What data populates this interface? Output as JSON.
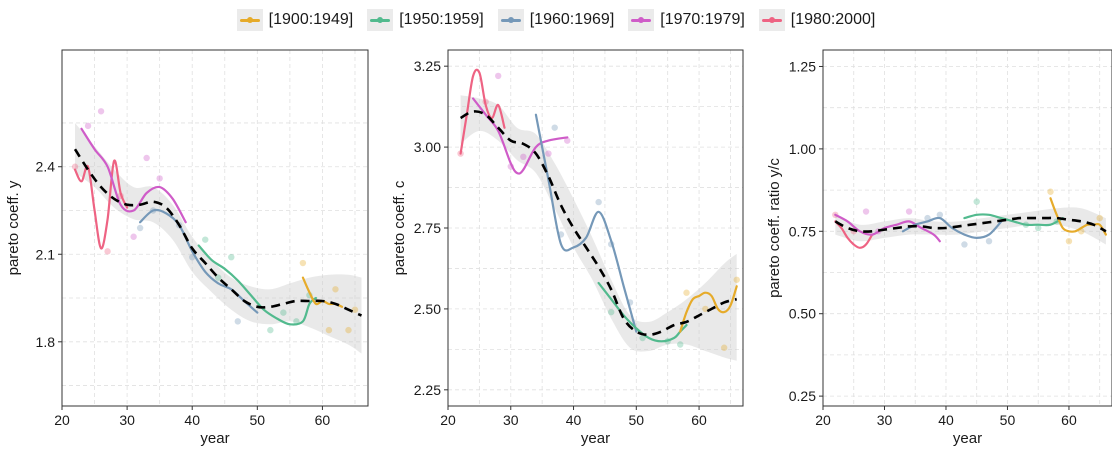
{
  "legend": {
    "items": [
      {
        "label": "[1900:1949]",
        "color": "#E6AB2A"
      },
      {
        "label": "[1950:1959]",
        "color": "#52BA8E"
      },
      {
        "label": "[1960:1969]",
        "color": "#7598B8"
      },
      {
        "label": "[1970:1979]",
        "color": "#CF5CC8"
      },
      {
        "label": "[1980:2000]",
        "color": "#EE6383"
      }
    ]
  },
  "chart_data": [
    {
      "type": "line",
      "xlabel": "year",
      "ylabel": "pareto coeff. y",
      "xlim": [
        20,
        67
      ],
      "ylim": [
        1.58,
        2.8
      ],
      "xticks": [
        20,
        30,
        40,
        50,
        60
      ],
      "yticks": [
        1.8,
        2.1,
        2.4
      ],
      "ytick_labels": [
        "1.8",
        "2.1",
        "2.4"
      ],
      "grid": true,
      "band": {
        "x": [
          22,
          25,
          28,
          31,
          34,
          37,
          40,
          43,
          46,
          49,
          52,
          55,
          58,
          61,
          64,
          66
        ],
        "upper": [
          2.55,
          2.47,
          2.39,
          2.33,
          2.33,
          2.27,
          2.16,
          2.08,
          2.02,
          1.99,
          1.98,
          2.0,
          2.02,
          2.03,
          2.03,
          2.02
        ],
        "lower": [
          2.38,
          2.33,
          2.26,
          2.22,
          2.21,
          2.15,
          2.04,
          1.97,
          1.91,
          1.87,
          1.86,
          1.87,
          1.85,
          1.82,
          1.79,
          1.76
        ]
      },
      "trend": {
        "x": [
          22,
          24,
          26,
          28,
          30,
          32,
          34,
          36,
          38,
          40,
          42,
          44,
          46,
          48,
          50,
          52,
          54,
          56,
          58,
          60,
          62,
          64,
          66
        ],
        "y": [
          2.46,
          2.39,
          2.33,
          2.29,
          2.27,
          2.27,
          2.28,
          2.26,
          2.2,
          2.12,
          2.07,
          2.02,
          1.98,
          1.94,
          1.92,
          1.92,
          1.93,
          1.94,
          1.94,
          1.94,
          1.93,
          1.91,
          1.89
        ]
      },
      "series": [
        {
          "name": "[1980:2000]",
          "x": [
            22,
            23,
            24,
            25,
            26,
            27,
            28,
            29,
            30
          ],
          "y": [
            2.39,
            2.35,
            2.4,
            2.25,
            2.12,
            2.22,
            2.42,
            2.31,
            2.26
          ]
        },
        {
          "name": "[1970:1979]",
          "x": [
            23,
            25,
            27,
            29,
            31,
            33,
            35,
            37,
            39
          ],
          "y": [
            2.53,
            2.46,
            2.4,
            2.27,
            2.25,
            2.31,
            2.33,
            2.29,
            2.21
          ]
        },
        {
          "name": "[1960:1969]",
          "x": [
            32,
            34,
            36,
            38,
            40,
            42,
            44,
            46,
            48,
            50
          ],
          "y": [
            2.21,
            2.25,
            2.24,
            2.2,
            2.11,
            2.04,
            2.0,
            1.98,
            1.94,
            1.9
          ]
        },
        {
          "name": "[1950:1959]",
          "x": [
            41,
            43,
            45,
            47,
            49,
            51,
            53,
            55,
            57,
            58,
            59
          ],
          "y": [
            2.13,
            2.08,
            2.05,
            2.01,
            1.96,
            1.91,
            1.88,
            1.86,
            1.87,
            1.93,
            1.95
          ]
        },
        {
          "name": "[1900:1949]",
          "x": [
            57,
            58,
            59,
            60,
            61,
            62,
            63
          ],
          "y": [
            2.02,
            1.97,
            1.93,
            1.94,
            1.93,
            1.93,
            1.92
          ]
        }
      ],
      "points": [
        {
          "x": 22,
          "y": 2.4,
          "s": 4
        },
        {
          "x": 24,
          "y": 2.54,
          "s": 3
        },
        {
          "x": 26,
          "y": 2.59,
          "s": 3
        },
        {
          "x": 27,
          "y": 2.11,
          "s": 4
        },
        {
          "x": 29,
          "y": 2.3,
          "s": 4
        },
        {
          "x": 31,
          "y": 2.16,
          "s": 3
        },
        {
          "x": 33,
          "y": 2.43,
          "s": 3
        },
        {
          "x": 35,
          "y": 2.36,
          "s": 3
        },
        {
          "x": 32,
          "y": 2.19,
          "s": 2
        },
        {
          "x": 34,
          "y": 2.25,
          "s": 2
        },
        {
          "x": 38,
          "y": 2.2,
          "s": 2
        },
        {
          "x": 40,
          "y": 2.09,
          "s": 2
        },
        {
          "x": 42,
          "y": 2.15,
          "s": 1
        },
        {
          "x": 44,
          "y": 2.02,
          "s": 1
        },
        {
          "x": 46,
          "y": 2.09,
          "s": 1
        },
        {
          "x": 47,
          "y": 1.87,
          "s": 2
        },
        {
          "x": 52,
          "y": 1.84,
          "s": 1
        },
        {
          "x": 54,
          "y": 1.9,
          "s": 1
        },
        {
          "x": 56,
          "y": 1.87,
          "s": 1
        },
        {
          "x": 58,
          "y": 1.96,
          "s": 1
        },
        {
          "x": 57,
          "y": 2.07,
          "s": 0
        },
        {
          "x": 61,
          "y": 1.84,
          "s": 0
        },
        {
          "x": 62,
          "y": 1.98,
          "s": 0
        },
        {
          "x": 64,
          "y": 1.84,
          "s": 0
        },
        {
          "x": 65,
          "y": 1.91,
          "s": 0
        }
      ]
    },
    {
      "type": "line",
      "xlabel": "year",
      "ylabel": "pareto coeff. c",
      "xlim": [
        20,
        67
      ],
      "ylim": [
        2.2,
        3.3
      ],
      "xticks": [
        20,
        30,
        40,
        50,
        60
      ],
      "yticks": [
        2.25,
        2.5,
        2.75,
        3.0,
        3.25
      ],
      "ytick_labels": [
        "2.25",
        "2.50",
        "2.75",
        "3.00",
        "3.25"
      ],
      "grid": true,
      "band": {
        "x": [
          22,
          25,
          28,
          31,
          34,
          37,
          40,
          43,
          46,
          49,
          52,
          55,
          58,
          61,
          64,
          66
        ],
        "upper": [
          3.16,
          3.15,
          3.13,
          3.06,
          3.04,
          2.95,
          2.84,
          2.72,
          2.59,
          2.48,
          2.46,
          2.49,
          2.53,
          2.58,
          2.64,
          2.67
        ],
        "lower": [
          3.01,
          3.05,
          3.02,
          2.96,
          2.92,
          2.81,
          2.69,
          2.59,
          2.47,
          2.38,
          2.37,
          2.39,
          2.39,
          2.37,
          2.35,
          2.34
        ]
      },
      "trend": {
        "x": [
          22,
          24,
          26,
          28,
          30,
          32,
          34,
          36,
          38,
          40,
          42,
          44,
          46,
          48,
          50,
          52,
          54,
          56,
          58,
          60,
          62,
          64,
          66
        ],
        "y": [
          3.09,
          3.11,
          3.1,
          3.06,
          3.02,
          3.01,
          2.98,
          2.91,
          2.82,
          2.75,
          2.69,
          2.63,
          2.56,
          2.47,
          2.43,
          2.42,
          2.43,
          2.45,
          2.46,
          2.48,
          2.5,
          2.52,
          2.53
        ]
      },
      "series": [
        {
          "name": "[1980:2000]",
          "x": [
            22,
            23,
            24,
            25,
            26,
            27,
            28,
            29
          ],
          "y": [
            2.98,
            3.1,
            3.22,
            3.23,
            3.13,
            3.09,
            3.13,
            3.06
          ]
        },
        {
          "name": "[1970:1979]",
          "x": [
            24,
            26,
            28,
            30,
            31,
            32,
            34,
            36,
            39
          ],
          "y": [
            3.15,
            3.1,
            3.05,
            2.95,
            2.92,
            2.93,
            3.0,
            3.02,
            3.03
          ]
        },
        {
          "name": "[1960:1969]",
          "x": [
            34,
            36,
            38,
            40,
            42,
            44,
            46,
            48,
            50
          ],
          "y": [
            3.1,
            2.9,
            2.7,
            2.69,
            2.72,
            2.8,
            2.71,
            2.57,
            2.43
          ]
        },
        {
          "name": "[1950:1959]",
          "x": [
            44,
            46,
            48,
            50,
            52,
            54,
            56,
            57,
            58
          ],
          "y": [
            2.58,
            2.53,
            2.48,
            2.44,
            2.41,
            2.4,
            2.41,
            2.43,
            2.45
          ]
        },
        {
          "name": "[1900:1949]",
          "x": [
            57,
            58,
            59,
            60,
            61,
            62,
            63,
            64,
            65,
            66
          ],
          "y": [
            2.43,
            2.49,
            2.53,
            2.54,
            2.55,
            2.54,
            2.5,
            2.49,
            2.51,
            2.57
          ]
        }
      ],
      "points": [
        {
          "x": 22,
          "y": 2.98,
          "s": 4
        },
        {
          "x": 26,
          "y": 3.14,
          "s": 4
        },
        {
          "x": 28,
          "y": 3.22,
          "s": 3
        },
        {
          "x": 30,
          "y": 2.94,
          "s": 3
        },
        {
          "x": 32,
          "y": 2.97,
          "s": 3
        },
        {
          "x": 37,
          "y": 3.06,
          "s": 2
        },
        {
          "x": 36,
          "y": 2.98,
          "s": 3
        },
        {
          "x": 39,
          "y": 3.02,
          "s": 3
        },
        {
          "x": 38,
          "y": 2.73,
          "s": 2
        },
        {
          "x": 44,
          "y": 2.83,
          "s": 2
        },
        {
          "x": 46,
          "y": 2.7,
          "s": 2
        },
        {
          "x": 49,
          "y": 2.52,
          "s": 2
        },
        {
          "x": 46,
          "y": 2.49,
          "s": 1
        },
        {
          "x": 51,
          "y": 2.41,
          "s": 1
        },
        {
          "x": 55,
          "y": 2.4,
          "s": 1
        },
        {
          "x": 57,
          "y": 2.39,
          "s": 1
        },
        {
          "x": 58,
          "y": 2.55,
          "s": 0
        },
        {
          "x": 61,
          "y": 2.5,
          "s": 0
        },
        {
          "x": 64,
          "y": 2.38,
          "s": 0
        },
        {
          "x": 66,
          "y": 2.59,
          "s": 0
        }
      ]
    },
    {
      "type": "line",
      "xlabel": "year",
      "ylabel": "pareto coeff. ratio y/c",
      "xlim": [
        20,
        67
      ],
      "ylim": [
        0.22,
        1.3
      ],
      "xticks": [
        20,
        30,
        40,
        50,
        60
      ],
      "yticks": [
        0.25,
        0.5,
        0.75,
        1.0,
        1.25
      ],
      "ytick_labels": [
        "0.25",
        "0.50",
        "0.75",
        "1.00",
        "1.25"
      ],
      "grid": true,
      "band": {
        "x": [
          22,
          26,
          30,
          34,
          38,
          42,
          46,
          50,
          54,
          58,
          62,
          66
        ],
        "upper": [
          0.8,
          0.77,
          0.78,
          0.79,
          0.78,
          0.78,
          0.79,
          0.8,
          0.81,
          0.82,
          0.82,
          0.79
        ],
        "lower": [
          0.74,
          0.72,
          0.73,
          0.74,
          0.74,
          0.74,
          0.75,
          0.76,
          0.77,
          0.77,
          0.75,
          0.71
        ]
      },
      "trend": {
        "x": [
          22,
          24,
          26,
          28,
          30,
          32,
          34,
          36,
          38,
          40,
          42,
          44,
          46,
          48,
          50,
          52,
          54,
          56,
          58,
          60,
          62,
          64,
          66
        ],
        "y": [
          0.78,
          0.76,
          0.75,
          0.75,
          0.755,
          0.76,
          0.765,
          0.765,
          0.76,
          0.76,
          0.765,
          0.77,
          0.775,
          0.78,
          0.785,
          0.79,
          0.79,
          0.79,
          0.79,
          0.785,
          0.78,
          0.77,
          0.75
        ]
      },
      "series": [
        {
          "name": "[1980:2000]",
          "x": [
            22,
            23,
            24,
            25,
            26,
            27,
            28
          ],
          "y": [
            0.78,
            0.76,
            0.73,
            0.71,
            0.7,
            0.71,
            0.74
          ]
        },
        {
          "name": "[1970:1979]",
          "x": [
            22,
            24,
            26,
            28,
            30,
            32,
            34,
            36,
            38,
            39
          ],
          "y": [
            0.8,
            0.78,
            0.75,
            0.74,
            0.76,
            0.77,
            0.78,
            0.76,
            0.74,
            0.72
          ]
        },
        {
          "name": "[1960:1969]",
          "x": [
            33,
            35,
            37,
            39,
            41,
            43,
            45,
            47,
            49
          ],
          "y": [
            0.75,
            0.77,
            0.78,
            0.79,
            0.76,
            0.74,
            0.73,
            0.74,
            0.78
          ]
        },
        {
          "name": "[1950:1959]",
          "x": [
            43,
            45,
            47,
            49,
            51,
            53,
            55,
            57,
            59
          ],
          "y": [
            0.79,
            0.8,
            0.8,
            0.79,
            0.78,
            0.77,
            0.77,
            0.77,
            0.79
          ]
        },
        {
          "name": "[1900:1949]",
          "x": [
            57,
            58,
            59,
            60,
            61,
            62,
            63,
            64,
            65,
            66
          ],
          "y": [
            0.85,
            0.8,
            0.76,
            0.75,
            0.75,
            0.76,
            0.77,
            0.77,
            0.77,
            0.74
          ]
        }
      ],
      "points": [
        {
          "x": 22,
          "y": 0.8,
          "s": 4
        },
        {
          "x": 25,
          "y": 0.75,
          "s": 4
        },
        {
          "x": 27,
          "y": 0.81,
          "s": 3
        },
        {
          "x": 29,
          "y": 0.75,
          "s": 3
        },
        {
          "x": 34,
          "y": 0.81,
          "s": 3
        },
        {
          "x": 37,
          "y": 0.79,
          "s": 2
        },
        {
          "x": 39,
          "y": 0.8,
          "s": 2
        },
        {
          "x": 43,
          "y": 0.71,
          "s": 2
        },
        {
          "x": 45,
          "y": 0.84,
          "s": 1
        },
        {
          "x": 47,
          "y": 0.72,
          "s": 2
        },
        {
          "x": 53,
          "y": 0.77,
          "s": 1
        },
        {
          "x": 55,
          "y": 0.76,
          "s": 1
        },
        {
          "x": 58,
          "y": 0.78,
          "s": 1
        },
        {
          "x": 57,
          "y": 0.87,
          "s": 0
        },
        {
          "x": 60,
          "y": 0.72,
          "s": 0
        },
        {
          "x": 62,
          "y": 0.75,
          "s": 0
        },
        {
          "x": 65,
          "y": 0.79,
          "s": 0
        }
      ]
    }
  ]
}
